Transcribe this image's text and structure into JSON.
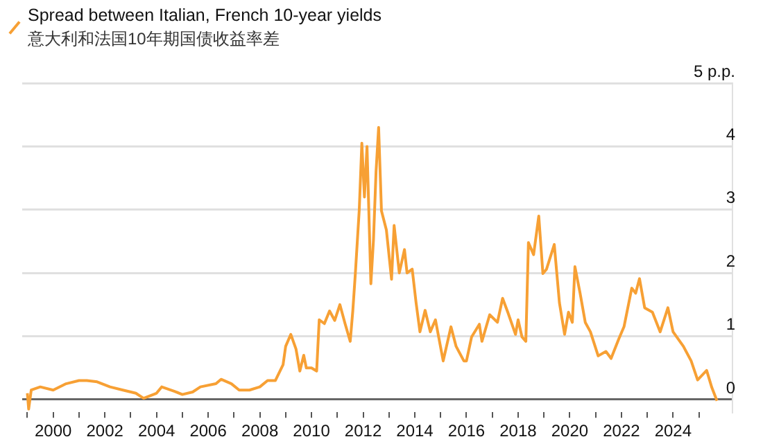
{
  "chart_data": {
    "type": "line",
    "subtitle": "意大利和法国10年期国债收益率差",
    "legend": "top left",
    "grid": "y",
    "marker": "none",
    "line_style": "solid",
    "xlim": [
      1998.8,
      2026.3
    ],
    "xticks": [
      {
        "value": 1999,
        "label": null
      },
      2000,
      {
        "value": 2001,
        "label": null
      },
      2002,
      {
        "value": 2003,
        "label": null
      },
      2004,
      {
        "value": 2005,
        "label": null
      },
      2006,
      {
        "value": 2007,
        "label": null
      },
      2008,
      {
        "value": 2009,
        "label": null
      },
      2010,
      {
        "value": 2011,
        "label": null
      },
      2012,
      {
        "value": 2013,
        "label": null
      },
      2014,
      {
        "value": 2015,
        "label": null
      },
      2016,
      {
        "value": 2017,
        "label": null
      },
      2018,
      {
        "value": 2019,
        "label": null
      },
      2020,
      {
        "value": 2021,
        "label": null
      },
      2022,
      {
        "value": 2023,
        "label": null
      },
      2024,
      {
        "value": 2025,
        "label": null
      }
    ],
    "ylim": [
      -0.2,
      5
    ],
    "yticks": [
      0,
      1,
      2,
      3,
      4,
      {
        "value": 5,
        "label": "5 p.p."
      }
    ],
    "series": [
      {
        "name": "Spread between Italian, French 10-year yields",
        "color": "#f7a034",
        "x": [
          1999.0,
          1999.05,
          1999.15,
          1999.5,
          2000.0,
          2000.5,
          2001.0,
          2001.3,
          2001.7,
          2002.2,
          2002.7,
          2003.2,
          2003.5,
          2004.0,
          2004.2,
          2004.7,
          2005.0,
          2005.4,
          2005.7,
          2006.3,
          2006.5,
          2006.9,
          2007.2,
          2007.6,
          2008.0,
          2008.3,
          2008.6,
          2008.9,
          2009.0,
          2009.2,
          2009.4,
          2009.55,
          2009.7,
          2009.8,
          2010.0,
          2010.2,
          2010.3,
          2010.5,
          2010.7,
          2010.9,
          2011.1,
          2011.3,
          2011.5,
          2011.6,
          2011.7,
          2011.85,
          2011.95,
          2012.05,
          2012.15,
          2012.3,
          2012.4,
          2012.5,
          2012.6,
          2012.71,
          2012.9,
          2013.1,
          2013.2,
          2013.4,
          2013.6,
          2013.7,
          2013.9,
          2014.05,
          2014.2,
          2014.4,
          2014.6,
          2014.8,
          2015.1,
          2015.4,
          2015.6,
          2015.9,
          2016.0,
          2016.2,
          2016.5,
          2016.6,
          2016.9,
          2017.2,
          2017.4,
          2017.6,
          2017.9,
          2018.0,
          2018.15,
          2018.3,
          2018.4,
          2018.6,
          2018.8,
          2018.96,
          2019.1,
          2019.4,
          2019.6,
          2019.8,
          2019.95,
          2020.1,
          2020.2,
          2020.4,
          2020.6,
          2020.8,
          2021.1,
          2021.4,
          2021.6,
          2021.9,
          2022.1,
          2022.4,
          2022.55,
          2022.7,
          2022.9,
          2023.2,
          2023.5,
          2023.8,
          2024.0,
          2024.4,
          2024.7,
          2024.95,
          2025.3,
          2025.5,
          2025.7
        ],
        "values": [
          0.1,
          -0.15,
          0.15,
          0.2,
          0.15,
          0.25,
          0.3,
          0.3,
          0.28,
          0.2,
          0.15,
          0.1,
          0.02,
          0.1,
          0.2,
          0.13,
          0.08,
          0.12,
          0.2,
          0.25,
          0.32,
          0.25,
          0.15,
          0.15,
          0.2,
          0.3,
          0.3,
          0.55,
          0.84,
          1.03,
          0.8,
          0.45,
          0.7,
          0.5,
          0.5,
          0.45,
          1.26,
          1.2,
          1.4,
          1.25,
          1.5,
          1.2,
          0.92,
          1.4,
          2.0,
          3.0,
          4.05,
          3.2,
          4.0,
          1.83,
          2.52,
          3.6,
          4.3,
          2.98,
          2.68,
          1.9,
          2.75,
          2.0,
          2.37,
          2.0,
          2.06,
          1.53,
          1.07,
          1.41,
          1.07,
          1.26,
          0.61,
          1.15,
          0.84,
          0.61,
          0.61,
          0.99,
          1.19,
          0.92,
          1.34,
          1.22,
          1.6,
          1.38,
          1.03,
          1.26,
          0.99,
          0.92,
          2.48,
          2.29,
          2.9,
          1.99,
          2.06,
          2.45,
          1.53,
          1.03,
          1.38,
          1.22,
          2.1,
          1.68,
          1.22,
          1.07,
          0.69,
          0.76,
          0.65,
          0.96,
          1.15,
          1.76,
          1.68,
          1.91,
          1.45,
          1.38,
          1.07,
          1.45,
          1.07,
          0.84,
          0.61,
          0.31,
          0.46,
          0.19,
          -0.02
        ]
      }
    ]
  }
}
